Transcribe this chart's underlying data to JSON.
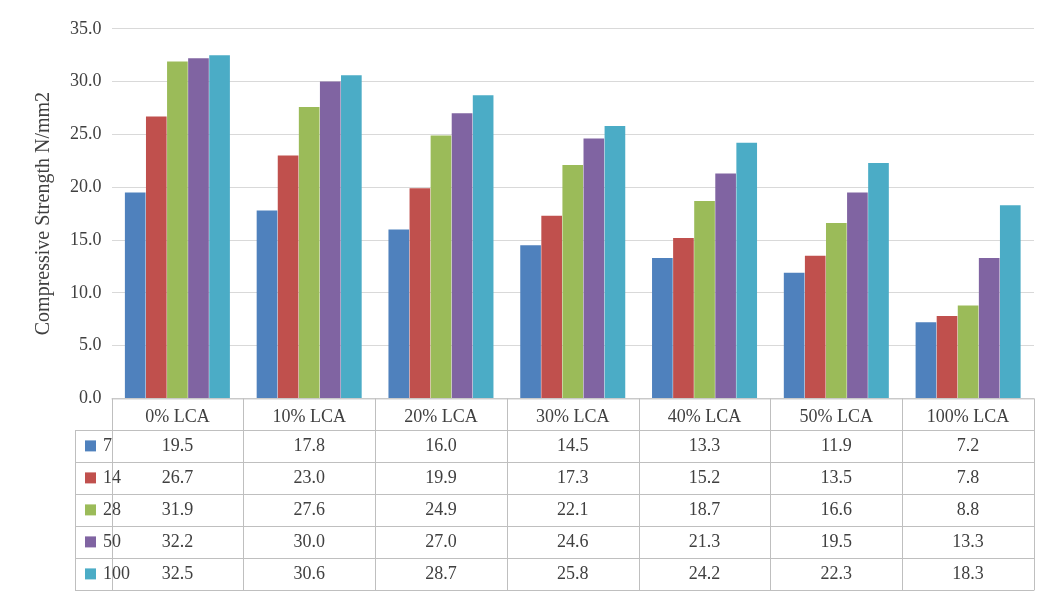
{
  "chart_data": {
    "type": "bar",
    "ylabel": "Compressive Strength N/mm2",
    "categories": [
      "0% LCA",
      "10% LCA",
      "20% LCA",
      "30% LCA",
      "40% LCA",
      "50% LCA",
      "100% LCA"
    ],
    "series": [
      {
        "name": "7",
        "color": "#4f81bd",
        "values": [
          19.5,
          17.8,
          16.0,
          14.5,
          13.3,
          11.9,
          7.2
        ],
        "value_labels": [
          "19.5",
          "17.8",
          "16.0",
          "14.5",
          "13.3",
          "11.9",
          "7.2"
        ]
      },
      {
        "name": "14",
        "color": "#c0504d",
        "values": [
          26.7,
          23.0,
          19.9,
          17.3,
          15.2,
          13.5,
          7.8
        ],
        "value_labels": [
          "26.7",
          "23.0",
          "19.9",
          "17.3",
          "15.2",
          "13.5",
          "7.8"
        ]
      },
      {
        "name": "28",
        "color": "#9bbb59",
        "values": [
          31.9,
          27.6,
          24.9,
          22.1,
          18.7,
          16.6,
          8.8
        ],
        "value_labels": [
          "31.9",
          "27.6",
          "24.9",
          "22.1",
          "18.7",
          "16.6",
          "8.8"
        ]
      },
      {
        "name": "50",
        "color": "#8064a2",
        "values": [
          32.2,
          30.0,
          27.0,
          24.6,
          21.3,
          19.5,
          13.3
        ],
        "value_labels": [
          "32.2",
          "30.0",
          "27.0",
          "24.6",
          "21.3",
          "19.5",
          "13.3"
        ]
      },
      {
        "name": "100",
        "color": "#4bacc6",
        "values": [
          32.5,
          30.6,
          28.7,
          25.8,
          24.2,
          22.3,
          18.3
        ],
        "value_labels": [
          "32.5",
          "30.6",
          "28.7",
          "25.8",
          "24.2",
          "22.3",
          "18.3"
        ]
      }
    ],
    "ylim": [
      0,
      35
    ],
    "yticks": [
      {
        "value": 0,
        "label": "0.0"
      },
      {
        "value": 5,
        "label": "5.0"
      },
      {
        "value": 10,
        "label": "10.0"
      },
      {
        "value": 15,
        "label": "15.0"
      },
      {
        "value": 20,
        "label": "20.0"
      },
      {
        "value": 25,
        "label": "25.0"
      },
      {
        "value": 30,
        "label": "30.0"
      },
      {
        "value": 35,
        "label": "35.0"
      }
    ],
    "grid": "y",
    "legend": "bottom"
  }
}
